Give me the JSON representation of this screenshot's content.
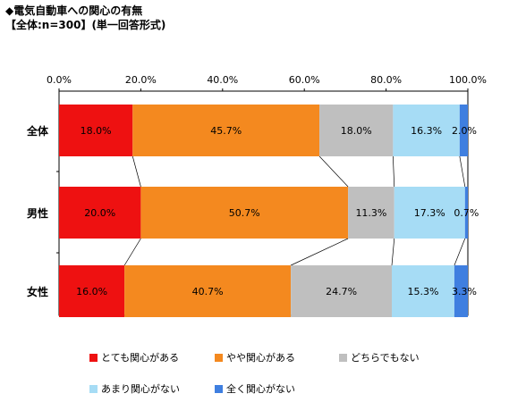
{
  "title": "◆電気自動車への関心の有無",
  "subtitle": "【全体:n=300】(単一回答形式)",
  "colors": {
    "very_interested": "#ee1111",
    "somewhat_interested": "#f4891f",
    "neither": "#bfbfbf",
    "not_very": "#a6dcf5",
    "not_at_all": "#3f7fe0"
  },
  "chart_data": {
    "type": "bar",
    "orientation": "horizontal",
    "stacked": true,
    "percent_stacked": true,
    "categories": [
      "全体",
      "男性",
      "女性"
    ],
    "series": [
      {
        "name": "とても関心がある",
        "color_key": "very_interested",
        "values": [
          18.0,
          20.0,
          16.0
        ],
        "labels": [
          "18.0%",
          "20.0%",
          "16.0%"
        ]
      },
      {
        "name": "やや関心がある",
        "color_key": "somewhat_interested",
        "values": [
          45.7,
          50.7,
          40.7
        ],
        "labels": [
          "45.7%",
          "50.7%",
          "40.7%"
        ]
      },
      {
        "name": "どちらでもない",
        "color_key": "neither",
        "values": [
          18.0,
          11.3,
          24.7
        ],
        "labels": [
          "18.0%",
          "11.3%",
          "24.7%"
        ]
      },
      {
        "name": "あまり関心がない",
        "color_key": "not_very",
        "values": [
          16.3,
          17.3,
          15.3
        ],
        "labels": [
          "16.3%",
          "17.3%",
          "15.3%"
        ]
      },
      {
        "name": "全く関心がない",
        "color_key": "not_at_all",
        "values": [
          2.0,
          0.7,
          3.3
        ],
        "labels": [
          "2.0%",
          "0.7%",
          "3.3%"
        ]
      }
    ],
    "x_ticks": [
      "0.0%",
      "20.0%",
      "40.0%",
      "60.0%",
      "80.0%",
      "100.0%"
    ],
    "xlim": [
      0,
      100
    ],
    "series_lines": true,
    "grid": false,
    "legend_position": "bottom"
  }
}
